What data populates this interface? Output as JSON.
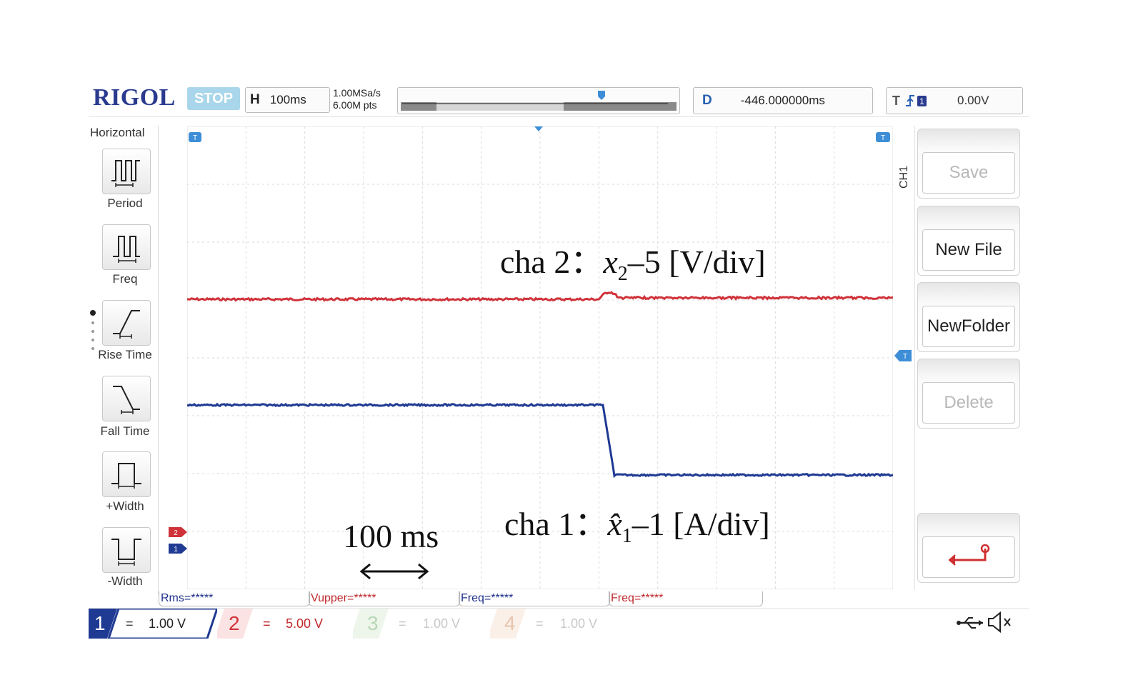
{
  "header": {
    "brand": "RIGOL",
    "run_state": "STOP",
    "horizontal_label": "H",
    "timebase": "100ms",
    "sample_rate": "1.00MSa/s",
    "memory_depth": "6.00M pts",
    "delay_label": "D",
    "delay_value": "-446.000000ms",
    "trigger_label": "T",
    "trigger_source": "1",
    "trigger_level": "0.00V"
  },
  "left_menu": {
    "title": "Horizontal",
    "items": [
      {
        "label": "Period",
        "icon": "period-icon"
      },
      {
        "label": "Freq",
        "icon": "freq-icon"
      },
      {
        "label": "Rise Time",
        "icon": "rise-time-icon"
      },
      {
        "label": "Fall Time",
        "icon": "fall-time-icon"
      },
      {
        "label": "+Width",
        "icon": "positive-width-icon"
      },
      {
        "label": "-Width",
        "icon": "negative-width-icon"
      }
    ]
  },
  "right_menu": {
    "tab_label": "CH1",
    "items": [
      {
        "label": "Save",
        "enabled": false
      },
      {
        "label": "New File",
        "enabled": true
      },
      {
        "label": "NewFolder",
        "enabled": true
      },
      {
        "label": "Delete",
        "enabled": false
      }
    ],
    "back_icon": "return-arrow-icon"
  },
  "annotations": {
    "ch2_prefix": "cha 2：",
    "ch2_var": "x",
    "ch2_sub": "2",
    "ch2_suffix": "–5 [V/div]",
    "ch1_prefix": "cha 1：",
    "ch1_var": "x̂",
    "ch1_sub": "1",
    "ch1_suffix": "–1 [A/div]",
    "timescale": "100 ms"
  },
  "measurements": [
    {
      "text": "Rms=*****",
      "color": "#1e2f8c"
    },
    {
      "text": "Vupper=*****",
      "color": "#c0282d"
    },
    {
      "text": "Freq=*****",
      "color": "#1e2f8c"
    },
    {
      "text": "Freq=*****",
      "color": "#c0282d"
    }
  ],
  "channels": [
    {
      "num": "1",
      "coupling": "=",
      "scale": "1.00 V",
      "color": "#1f3a93",
      "active": true
    },
    {
      "num": "2",
      "coupling": "=",
      "scale": "5.00 V",
      "color": "#d0323a",
      "active": true
    },
    {
      "num": "3",
      "coupling": "=",
      "scale": "1.00 V",
      "color": "#b9d7b4",
      "active": false
    },
    {
      "num": "4",
      "coupling": "=",
      "scale": "1.00 V",
      "color": "#e6c5ac",
      "active": false
    }
  ],
  "status_icons": [
    "usb-icon",
    "speaker-muted-icon"
  ],
  "colors": {
    "ch1_trace": "#1f3a93",
    "ch2_trace": "#d0323a",
    "marker": "#3d8ed6"
  }
}
